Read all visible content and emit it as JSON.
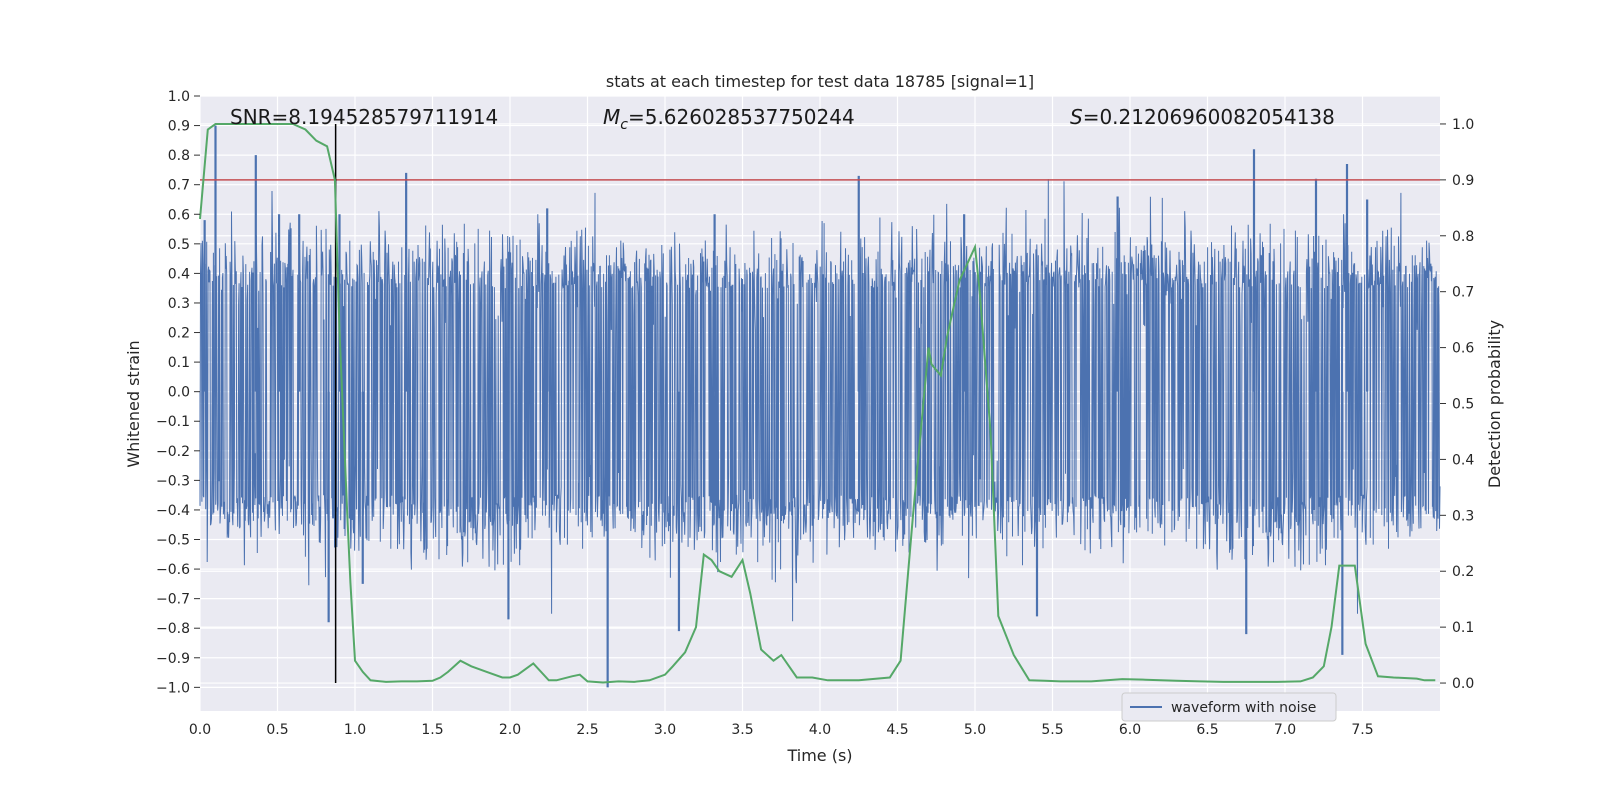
{
  "chart_data": {
    "type": "line",
    "title": "stats at each timestep for test data 18785 [signal=1]",
    "xlabel": "Time (s)",
    "ylabel_left": "Whitened strain",
    "ylabel_right": "Detection probability",
    "xlim": [
      0.0,
      8.0
    ],
    "ylim_left": [
      -1.08,
      1.0
    ],
    "ylim_right": [
      -0.05,
      1.05
    ],
    "x_ticks": [
      "0.0",
      "0.5",
      "1.0",
      "1.5",
      "2.0",
      "2.5",
      "3.0",
      "3.5",
      "4.0",
      "4.5",
      "5.0",
      "5.5",
      "6.0",
      "6.5",
      "7.0",
      "7.5"
    ],
    "y_left_ticks": [
      "1.0",
      "0.9",
      "0.8",
      "0.7",
      "0.6",
      "0.5",
      "0.4",
      "0.3",
      "0.2",
      "0.1",
      "0.0",
      "−0.1",
      "−0.2",
      "−0.3",
      "−0.4",
      "−0.5",
      "−0.6",
      "−0.7",
      "−0.8",
      "−0.9",
      "−1.0"
    ],
    "y_right_ticks": [
      "1.0",
      "0.9",
      "0.8",
      "0.7",
      "0.6",
      "0.5",
      "0.4",
      "0.3",
      "0.2",
      "0.1",
      "0.0"
    ],
    "grid": true,
    "legend_position": "lower-right",
    "annotations": {
      "snr": "SNR=8.194528579711914",
      "mc_symbol": "M",
      "mc_sub": "c",
      "mc_value": "=5.626028537750244",
      "s_symbol": "S",
      "s_value": "=0.21206960082054138"
    },
    "threshold_right": 0.9,
    "marker_x": 0.875,
    "series": [
      {
        "name": "waveform with noise",
        "axis": "left",
        "color": "#4c72b0",
        "noise_amplitude": 0.35,
        "spikes": [
          [
            0.03,
            0.58
          ],
          [
            0.1,
            0.9
          ],
          [
            0.36,
            0.8
          ],
          [
            0.51,
            0.6
          ],
          [
            0.64,
            0.6
          ],
          [
            0.83,
            -0.78
          ],
          [
            0.9,
            0.6
          ],
          [
            1.33,
            0.74
          ],
          [
            1.99,
            -0.77
          ],
          [
            2.63,
            -1.0
          ],
          [
            2.67,
            -0.38
          ],
          [
            3.09,
            -0.81
          ],
          [
            4.25,
            0.73
          ],
          [
            4.93,
            0.6
          ],
          [
            5.4,
            -0.76
          ],
          [
            6.8,
            0.82
          ],
          [
            6.75,
            -0.82
          ],
          [
            7.2,
            0.72
          ],
          [
            7.4,
            0.77
          ],
          [
            7.37,
            -0.89
          ],
          [
            7.53,
            0.65
          ],
          [
            1.05,
            -0.65
          ],
          [
            2.24,
            0.62
          ],
          [
            3.32,
            0.6
          ],
          [
            5.92,
            0.66
          ]
        ]
      },
      {
        "name": "",
        "axis": "right",
        "color": "#55a868",
        "x": [
          0.0,
          0.05,
          0.1,
          0.2,
          0.3,
          0.4,
          0.5,
          0.6,
          0.68,
          0.75,
          0.82,
          0.87,
          0.9,
          0.95,
          0.97,
          1.0,
          1.05,
          1.1,
          1.2,
          1.3,
          1.4,
          1.5,
          1.55,
          1.6,
          1.68,
          1.75,
          1.85,
          1.95,
          2.0,
          2.05,
          2.15,
          2.25,
          2.3,
          2.4,
          2.45,
          2.5,
          2.6,
          2.7,
          2.8,
          2.9,
          3.0,
          3.05,
          3.13,
          3.2,
          3.25,
          3.3,
          3.35,
          3.43,
          3.5,
          3.55,
          3.62,
          3.7,
          3.75,
          3.85,
          3.95,
          4.05,
          4.25,
          4.45,
          4.52,
          4.6,
          4.7,
          4.72,
          4.78,
          4.82,
          4.9,
          4.95,
          5.0,
          5.03,
          5.1,
          5.15,
          5.25,
          5.35,
          5.45,
          5.55,
          5.75,
          5.95,
          6.1,
          6.3,
          6.45,
          6.6,
          6.95,
          7.1,
          7.18,
          7.25,
          7.3,
          7.35,
          7.45,
          7.52,
          7.6,
          7.7,
          7.85,
          7.9,
          7.97
        ],
        "y": [
          0.83,
          0.99,
          1.0,
          1.0,
          1.0,
          1.0,
          1.0,
          1.0,
          0.99,
          0.97,
          0.96,
          0.9,
          0.63,
          0.3,
          0.18,
          0.04,
          0.02,
          0.005,
          0.002,
          0.003,
          0.003,
          0.004,
          0.01,
          0.02,
          0.04,
          0.03,
          0.02,
          0.01,
          0.01,
          0.015,
          0.035,
          0.005,
          0.005,
          0.012,
          0.015,
          0.003,
          0.001,
          0.003,
          0.002,
          0.005,
          0.015,
          0.03,
          0.055,
          0.1,
          0.23,
          0.22,
          0.2,
          0.19,
          0.22,
          0.16,
          0.06,
          0.04,
          0.05,
          0.01,
          0.01,
          0.005,
          0.005,
          0.01,
          0.04,
          0.3,
          0.6,
          0.57,
          0.55,
          0.62,
          0.72,
          0.75,
          0.78,
          0.7,
          0.45,
          0.12,
          0.05,
          0.005,
          0.004,
          0.003,
          0.003,
          0.007,
          0.006,
          0.004,
          0.003,
          0.002,
          0.002,
          0.003,
          0.01,
          0.03,
          0.1,
          0.21,
          0.21,
          0.07,
          0.012,
          0.01,
          0.008,
          0.005,
          0.005
        ]
      }
    ]
  }
}
